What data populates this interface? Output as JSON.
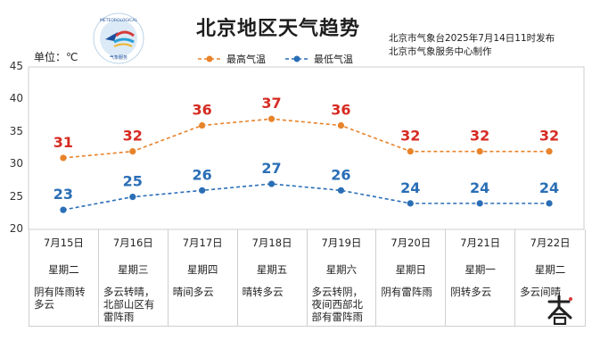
{
  "title": "北京地区天气趋势",
  "unit": "单位：℃",
  "source": [
    "北京市气象台2025年7月14日11时发布",
    "北京市气象服务中心制作"
  ],
  "logo_text": "METEOROLOGICAL SERVICE · 气象服务",
  "stamp_text": "大暑",
  "colors": {
    "max": "#e8832a",
    "min": "#2a6eb6",
    "maxLabel": "#d62b22",
    "minLabel": "#2a6eb6",
    "grid": "#cfcfcf"
  },
  "chart_data": {
    "type": "line",
    "categories": [
      "7月15日",
      "7月16日",
      "7月17日",
      "7月18日",
      "7月19日",
      "7月20日",
      "7月21日",
      "7月22日"
    ],
    "weekdays": [
      "星期二",
      "星期三",
      "星期四",
      "星期五",
      "星期六",
      "星期日",
      "星期一",
      "星期二"
    ],
    "weather": [
      "阴有阵雨转多云",
      "多云转晴，北部山区有雷阵雨",
      "晴间多云",
      "晴转多云",
      "多云转阴，夜间西部北部有雷阵雨",
      "阴有雷阵雨",
      "阴转多云",
      "多云间晴"
    ],
    "series": [
      {
        "name": "最高气温",
        "values": [
          31,
          32,
          36,
          37,
          36,
          32,
          32,
          32
        ]
      },
      {
        "name": "最低气温",
        "values": [
          23,
          25,
          26,
          27,
          26,
          24,
          24,
          24
        ]
      }
    ],
    "ylim": [
      20,
      45
    ],
    "yticks": [
      20,
      25,
      30,
      35,
      40,
      45
    ],
    "legend_position": "top"
  }
}
